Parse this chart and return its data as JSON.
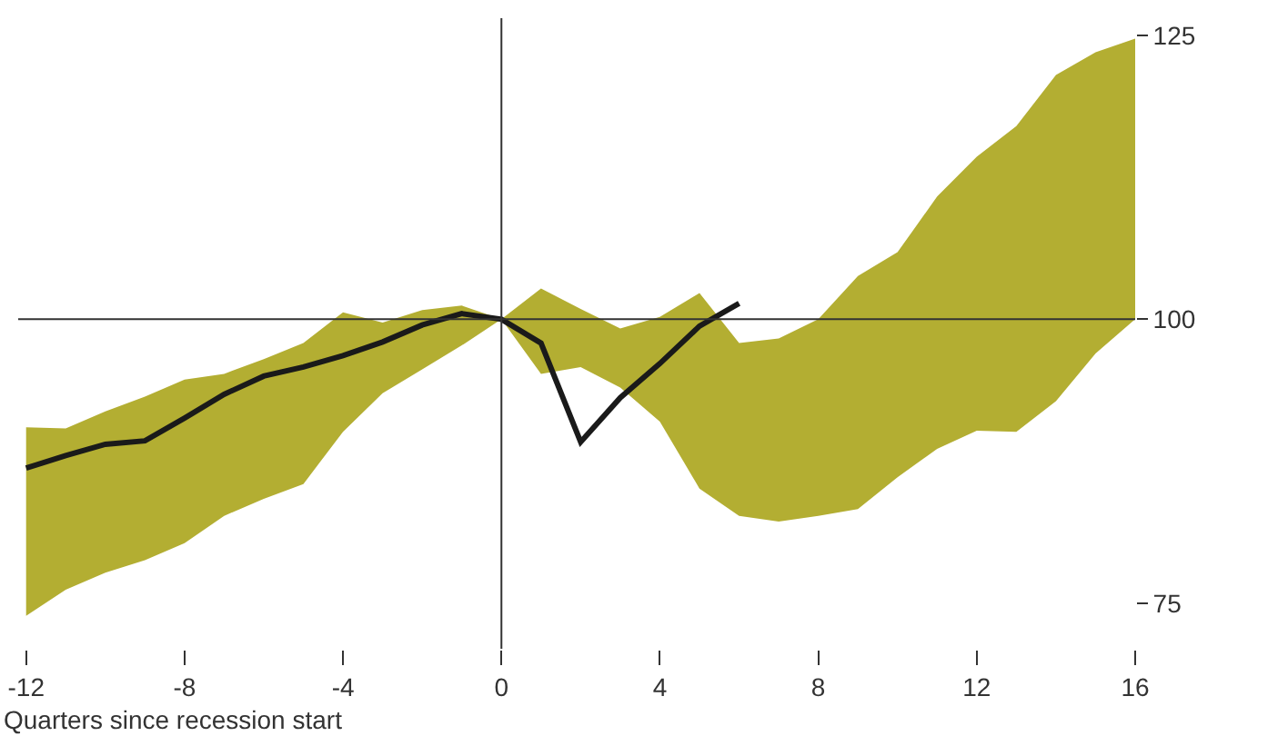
{
  "chart_data": {
    "type": "line",
    "xlabel": "Quarters since recession start",
    "xlim": [
      -12.2,
      16
    ],
    "ylim": [
      71,
      126.5
    ],
    "xticks": [
      -12,
      -8,
      -4,
      0,
      4,
      8,
      12,
      16
    ],
    "yticks": [
      75,
      100,
      125
    ],
    "grid": false,
    "marker": "none",
    "line_style": "solid",
    "series": [
      {
        "color": "#b3ae32",
        "x": [
          -12,
          -11,
          -10,
          -9,
          -8,
          -7,
          -6,
          -5,
          -4,
          -3,
          -2,
          -1,
          0,
          1,
          2,
          3,
          4,
          5,
          6,
          7,
          8,
          9,
          10,
          11,
          12,
          13,
          14,
          15,
          16
        ],
        "values": [
          null,
          null,
          null,
          null,
          null,
          null,
          null,
          null,
          null,
          null,
          null,
          null,
          null,
          null,
          null,
          null,
          null,
          null,
          null,
          null,
          null,
          null,
          null,
          null,
          null,
          null,
          null,
          null,
          null
        ],
        "upper": [
          90.5,
          90.4,
          91.9,
          93.2,
          94.7,
          95.2,
          96.5,
          97.9,
          100.6,
          99.7,
          100.8,
          101.2,
          100,
          102.7,
          100.9,
          99.2,
          100.2,
          102.3,
          97.9,
          98.3,
          100,
          103.8,
          105.9,
          110.8,
          114.3,
          117,
          121.5,
          123.5,
          124.7
        ],
        "lower": [
          73.9,
          76.2,
          77.7,
          78.8,
          80.3,
          82.7,
          84.2,
          85.5,
          90.1,
          93.5,
          95.6,
          97.7,
          100,
          95.2,
          95.8,
          94,
          91,
          85.1,
          82.7,
          82.2,
          82.7,
          83.3,
          86.1,
          88.6,
          90.2,
          90.1,
          92.8,
          97,
          100
        ]
      },
      {
        "color": "#1a1a1a",
        "x": [
          -12,
          -11,
          -10,
          -9,
          -8,
          -7,
          -6,
          -5,
          -4,
          -3,
          -2,
          -1,
          0,
          1,
          2,
          3,
          4,
          5,
          6
        ],
        "values": [
          86.9,
          88,
          89,
          89.3,
          91.3,
          93.4,
          95,
          95.8,
          96.8,
          98,
          99.5,
          100.5,
          100,
          97.9,
          89.2,
          93.1,
          96.1,
          99.4,
          101.4
        ]
      }
    ],
    "ref_lines": [
      {
        "axis": "y",
        "value": 100,
        "color": "#333333"
      },
      {
        "axis": "x",
        "value": 0,
        "color": "#333333"
      }
    ]
  }
}
